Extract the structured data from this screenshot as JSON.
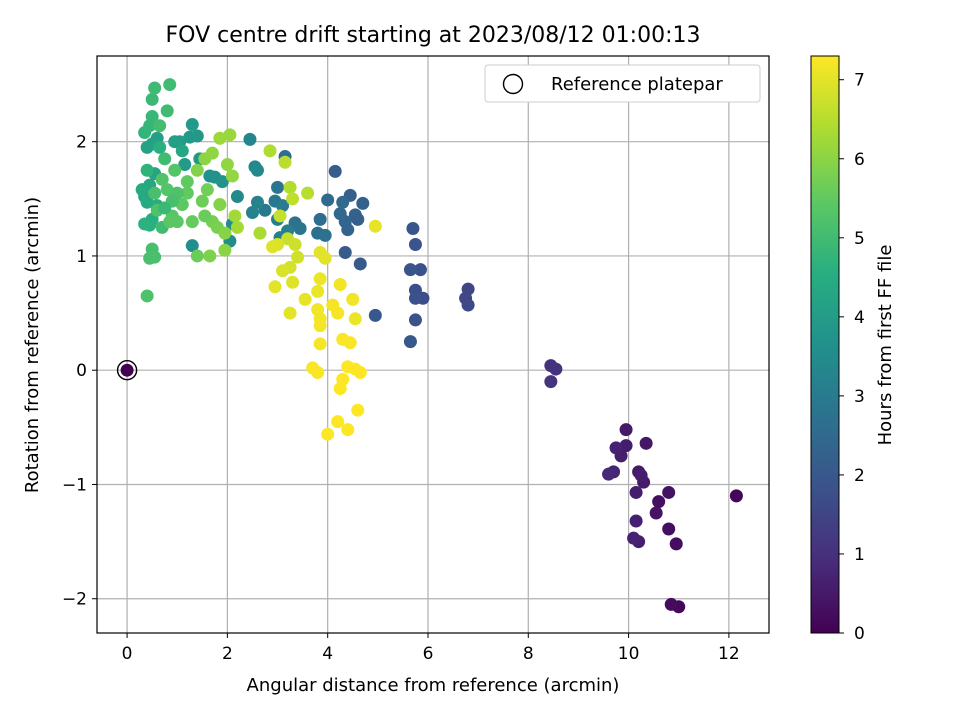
{
  "chart_data": {
    "type": "scatter",
    "title": "FOV centre drift starting at 2023/08/12 01:00:13",
    "xlabel": "Angular distance from reference (arcmin)",
    "ylabel": "Rotation from reference (arcmin)",
    "xlim": [
      -0.6,
      12.8
    ],
    "ylim": [
      -2.3,
      2.75
    ],
    "xticks": [
      0,
      2,
      4,
      6,
      8,
      10,
      12
    ],
    "yticks": [
      -2,
      -1,
      0,
      1,
      2
    ],
    "xtick_labels": [
      "0",
      "2",
      "4",
      "6",
      "8",
      "10",
      "12"
    ],
    "ytick_labels": [
      "−2",
      "−1",
      "0",
      "1",
      "2"
    ],
    "grid": true,
    "legend": {
      "label": "Reference platepar",
      "placement": "top-right"
    },
    "colorbar": {
      "label": "Hours from first FF file",
      "range": [
        0,
        7.3
      ],
      "ticks": [
        0,
        1,
        2,
        3,
        4,
        5,
        6,
        7
      ],
      "tick_labels": [
        "0",
        "1",
        "2",
        "3",
        "4",
        "5",
        "6",
        "7"
      ],
      "colormap": "viridis"
    },
    "reference_point": {
      "x": 0,
      "y": 0
    },
    "series": [
      {
        "points": [
          [
            12.15,
            -1.1,
            0.1
          ],
          [
            11.0,
            -2.07,
            0.15
          ],
          [
            10.85,
            -2.05,
            0.2
          ],
          [
            10.95,
            -1.52,
            0.25
          ],
          [
            10.8,
            -1.39,
            0.3
          ],
          [
            10.8,
            -1.07,
            0.35
          ],
          [
            10.6,
            -1.15,
            0.3
          ],
          [
            10.55,
            -1.25,
            0.4
          ],
          [
            10.35,
            -0.64,
            0.45
          ],
          [
            10.3,
            -0.98,
            0.5
          ],
          [
            10.2,
            -0.89,
            0.5
          ],
          [
            10.25,
            -0.92,
            0.55
          ],
          [
            10.15,
            -1.07,
            0.6
          ],
          [
            10.15,
            -1.32,
            0.65
          ],
          [
            10.2,
            -1.5,
            0.6
          ],
          [
            10.1,
            -1.47,
            0.7
          ],
          [
            9.95,
            -0.52,
            0.5
          ],
          [
            9.95,
            -0.66,
            0.55
          ],
          [
            9.85,
            -0.75,
            0.6
          ],
          [
            9.75,
            -0.68,
            0.7
          ],
          [
            9.7,
            -0.89,
            0.75
          ],
          [
            9.6,
            -0.91,
            0.8
          ],
          [
            8.45,
            0.04,
            1.0
          ],
          [
            8.55,
            0.01,
            1.05
          ],
          [
            8.45,
            -0.1,
            1.1
          ],
          [
            6.8,
            0.71,
            1.5
          ],
          [
            6.75,
            0.63,
            1.55
          ],
          [
            6.8,
            0.57,
            1.6
          ],
          [
            5.9,
            0.63,
            1.7
          ],
          [
            5.75,
            0.7,
            1.75
          ],
          [
            5.75,
            0.63,
            1.8
          ],
          [
            5.75,
            0.44,
            1.85
          ],
          [
            5.85,
            0.88,
            1.8
          ],
          [
            5.65,
            0.88,
            1.9
          ],
          [
            5.75,
            1.1,
            1.9
          ],
          [
            5.7,
            1.24,
            1.95
          ],
          [
            5.65,
            0.25,
            2.0
          ],
          [
            4.95,
            0.48,
            2.0
          ],
          [
            4.65,
            0.93,
            2.05
          ],
          [
            4.35,
            1.03,
            2.1
          ],
          [
            4.15,
            1.74,
            2.15
          ],
          [
            4.45,
            1.53,
            2.2
          ],
          [
            4.7,
            1.46,
            2.25
          ],
          [
            4.55,
            1.36,
            2.3
          ],
          [
            4.6,
            1.32,
            2.2
          ],
          [
            4.35,
            1.3,
            2.4
          ],
          [
            4.4,
            1.23,
            2.35
          ],
          [
            4.25,
            1.37,
            2.45
          ],
          [
            4.3,
            1.47,
            2.5
          ],
          [
            4.0,
            1.49,
            2.5
          ],
          [
            3.85,
            1.32,
            2.6
          ],
          [
            3.8,
            1.2,
            2.65
          ],
          [
            3.95,
            1.18,
            2.7
          ],
          [
            3.35,
            1.29,
            2.75
          ],
          [
            3.45,
            1.24,
            2.8
          ],
          [
            3.15,
            1.87,
            2.6
          ],
          [
            3.0,
            1.6,
            2.85
          ],
          [
            2.95,
            1.48,
            2.9
          ],
          [
            2.75,
            1.4,
            2.95
          ],
          [
            3.1,
            1.44,
            3.0
          ],
          [
            3.0,
            1.32,
            3.05
          ],
          [
            3.2,
            1.22,
            3.1
          ],
          [
            3.05,
            1.16,
            3.15
          ],
          [
            2.5,
            1.38,
            3.2
          ],
          [
            2.6,
            1.47,
            3.25
          ],
          [
            2.45,
            2.02,
            3.3
          ],
          [
            2.55,
            1.78,
            3.35
          ],
          [
            2.6,
            1.75,
            3.4
          ],
          [
            2.2,
            1.52,
            3.45
          ],
          [
            2.1,
            1.28,
            3.5
          ],
          [
            2.05,
            1.13,
            3.55
          ],
          [
            1.3,
            1.09,
            3.6
          ],
          [
            1.65,
            1.7,
            3.65
          ],
          [
            1.75,
            1.69,
            3.7
          ],
          [
            1.9,
            1.65,
            3.75
          ],
          [
            1.45,
            1.85,
            3.8
          ],
          [
            1.4,
            2.05,
            3.85
          ],
          [
            1.25,
            2.04,
            3.9
          ],
          [
            1.15,
            1.8,
            3.95
          ],
          [
            1.05,
            2.0,
            4.0
          ],
          [
            0.95,
            2.0,
            4.05
          ],
          [
            0.6,
            2.03,
            4.1
          ],
          [
            0.5,
            1.98,
            4.15
          ],
          [
            0.4,
            1.95,
            4.2
          ],
          [
            0.55,
            1.72,
            4.25
          ],
          [
            0.45,
            1.62,
            4.3
          ],
          [
            0.35,
            1.52,
            4.35
          ],
          [
            0.3,
            1.58,
            4.4
          ],
          [
            0.4,
            1.47,
            4.45
          ],
          [
            0.6,
            1.44,
            4.5
          ],
          [
            0.5,
            1.32,
            4.55
          ],
          [
            0.45,
            1.27,
            4.6
          ],
          [
            0.35,
            1.28,
            4.65
          ],
          [
            0.4,
            1.75,
            4.7
          ],
          [
            0.35,
            2.08,
            4.75
          ],
          [
            0.45,
            2.14,
            4.8
          ],
          [
            0.5,
            2.22,
            4.85
          ],
          [
            0.5,
            2.37,
            4.9
          ],
          [
            0.55,
            2.47,
            4.95
          ],
          [
            0.85,
            2.5,
            5.0
          ],
          [
            0.8,
            2.27,
            5.0
          ],
          [
            0.65,
            2.14,
            5.05
          ],
          [
            0.55,
            1.55,
            5.1
          ],
          [
            0.5,
            1.06,
            5.1
          ],
          [
            0.55,
            0.99,
            5.15
          ],
          [
            0.45,
            0.98,
            5.15
          ],
          [
            0.4,
            0.65,
            5.2
          ],
          [
            0.6,
            1.4,
            5.2
          ],
          [
            0.7,
            1.67,
            5.25
          ],
          [
            0.8,
            1.58,
            5.3
          ],
          [
            0.9,
            1.35,
            5.35
          ],
          [
            1.0,
            1.3,
            5.4
          ],
          [
            1.1,
            1.45,
            5.45
          ],
          [
            1.2,
            1.55,
            5.5
          ],
          [
            1.3,
            1.3,
            5.55
          ],
          [
            1.4,
            1.0,
            5.6
          ],
          [
            1.5,
            1.48,
            5.65
          ],
          [
            1.6,
            1.58,
            5.7
          ],
          [
            1.7,
            1.3,
            5.75
          ],
          [
            1.8,
            1.25,
            5.8
          ],
          [
            1.65,
            1.0,
            5.85
          ],
          [
            1.85,
            1.45,
            5.9
          ],
          [
            1.95,
            1.2,
            5.95
          ],
          [
            1.95,
            1.05,
            6.0
          ],
          [
            2.0,
            1.8,
            6.05
          ],
          [
            2.1,
            1.7,
            6.1
          ],
          [
            2.05,
            2.06,
            6.15
          ],
          [
            1.85,
            2.03,
            6.2
          ],
          [
            2.15,
            1.35,
            6.25
          ],
          [
            2.2,
            1.25,
            6.3
          ],
          [
            2.65,
            1.2,
            6.35
          ],
          [
            2.85,
            1.92,
            6.4
          ],
          [
            3.25,
            1.6,
            6.45
          ],
          [
            3.6,
            1.55,
            6.5
          ],
          [
            3.15,
            1.82,
            6.55
          ],
          [
            3.3,
            1.5,
            6.6
          ],
          [
            3.05,
            1.35,
            6.65
          ],
          [
            3.2,
            1.15,
            6.7
          ],
          [
            3.35,
            1.1,
            6.75
          ],
          [
            3.4,
            0.99,
            6.8
          ],
          [
            3.25,
            0.9,
            6.85
          ],
          [
            3.1,
            0.87,
            6.9
          ],
          [
            3.3,
            0.77,
            6.95
          ],
          [
            2.95,
            0.73,
            7.0
          ],
          [
            3.25,
            0.5,
            7.0
          ],
          [
            3.55,
            0.62,
            7.05
          ],
          [
            3.85,
            0.8,
            7.1
          ],
          [
            3.8,
            0.69,
            7.1
          ],
          [
            3.8,
            0.53,
            7.15
          ],
          [
            3.85,
            0.45,
            7.15
          ],
          [
            3.85,
            0.39,
            7.2
          ],
          [
            3.85,
            0.23,
            7.2
          ],
          [
            3.7,
            0.02,
            7.25
          ],
          [
            3.8,
            -0.02,
            7.25
          ],
          [
            4.0,
            -0.56,
            7.28
          ],
          [
            4.2,
            -0.45,
            7.28
          ],
          [
            4.4,
            -0.52,
            7.3
          ],
          [
            4.25,
            -0.16,
            7.3
          ],
          [
            4.3,
            -0.08,
            7.3
          ],
          [
            4.4,
            0.03,
            7.3
          ],
          [
            4.55,
            0.01,
            7.3
          ],
          [
            4.65,
            -0.02,
            7.3
          ],
          [
            4.6,
            -0.35,
            7.3
          ],
          [
            4.45,
            0.24,
            7.25
          ],
          [
            4.3,
            0.27,
            7.25
          ],
          [
            4.2,
            0.5,
            7.2
          ],
          [
            4.1,
            0.57,
            7.2
          ],
          [
            4.25,
            0.75,
            7.15
          ],
          [
            4.5,
            0.62,
            7.15
          ],
          [
            4.55,
            0.45,
            7.1
          ],
          [
            3.95,
            0.98,
            7.0
          ],
          [
            3.85,
            1.03,
            7.0
          ],
          [
            4.95,
            1.26,
            7.05
          ],
          [
            3.0,
            1.1,
            6.9
          ],
          [
            2.9,
            1.08,
            6.95
          ],
          [
            1.4,
            1.75,
            5.9
          ],
          [
            1.55,
            1.85,
            6.0
          ],
          [
            1.7,
            1.9,
            6.05
          ],
          [
            1.2,
            1.65,
            5.5
          ],
          [
            0.95,
            1.75,
            5.3
          ],
          [
            0.75,
            1.85,
            5.0
          ],
          [
            0.65,
            1.95,
            4.6
          ],
          [
            1.1,
            1.92,
            4.3
          ],
          [
            1.3,
            2.15,
            3.9
          ],
          [
            1.0,
            1.55,
            5.2
          ],
          [
            0.9,
            1.48,
            5.1
          ],
          [
            0.75,
            1.42,
            4.9
          ],
          [
            0.7,
            1.25,
            5.0
          ],
          [
            0.85,
            1.3,
            5.4
          ],
          [
            1.55,
            1.35,
            5.6
          ]
        ]
      }
    ]
  }
}
